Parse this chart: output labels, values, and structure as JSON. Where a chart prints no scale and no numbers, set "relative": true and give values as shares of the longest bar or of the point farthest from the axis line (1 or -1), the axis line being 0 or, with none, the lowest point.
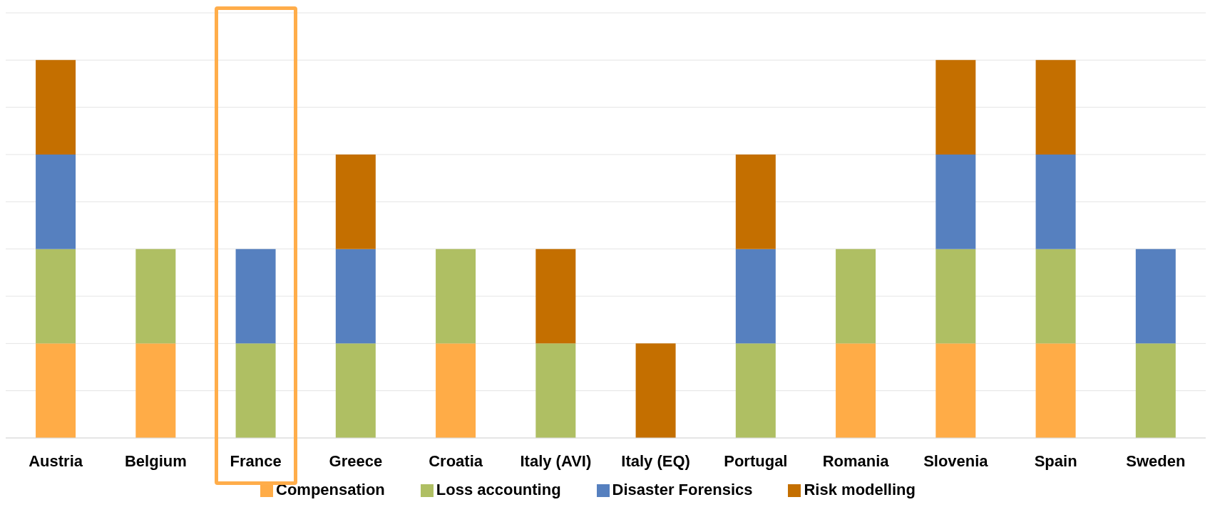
{
  "chart_data": {
    "type": "bar",
    "stacked": true,
    "relative": true,
    "grid": "y",
    "legend": "bottom",
    "categories": [
      "Austria",
      "Belgium",
      "France",
      "Greece",
      "Croatia",
      "Italy (AVI)",
      "Italy (EQ)",
      "Portugal",
      "Romania",
      "Slovenia",
      "Spain",
      "Sweden"
    ],
    "series": [
      {
        "name": "Compensation",
        "color": "#ffac47",
        "values": [
          0.25,
          0.25,
          null,
          null,
          0.25,
          null,
          null,
          null,
          0.25,
          0.25,
          0.25,
          null
        ]
      },
      {
        "name": "Loss accounting",
        "color": "#afbf63",
        "values": [
          0.25,
          0.25,
          0.25,
          0.25,
          0.25,
          0.25,
          null,
          0.25,
          0.25,
          0.25,
          0.25,
          0.25
        ]
      },
      {
        "name": "Disaster Forensics",
        "color": "#5680bf",
        "values": [
          0.25,
          null,
          0.25,
          0.25,
          null,
          null,
          null,
          0.25,
          null,
          0.25,
          0.25,
          0.25
        ]
      },
      {
        "name": "Risk modelling",
        "color": "#c46f00",
        "values": [
          0.25,
          null,
          null,
          0.25,
          null,
          0.25,
          0.25,
          0.25,
          null,
          0.25,
          0.25,
          null
        ]
      }
    ]
  }
}
